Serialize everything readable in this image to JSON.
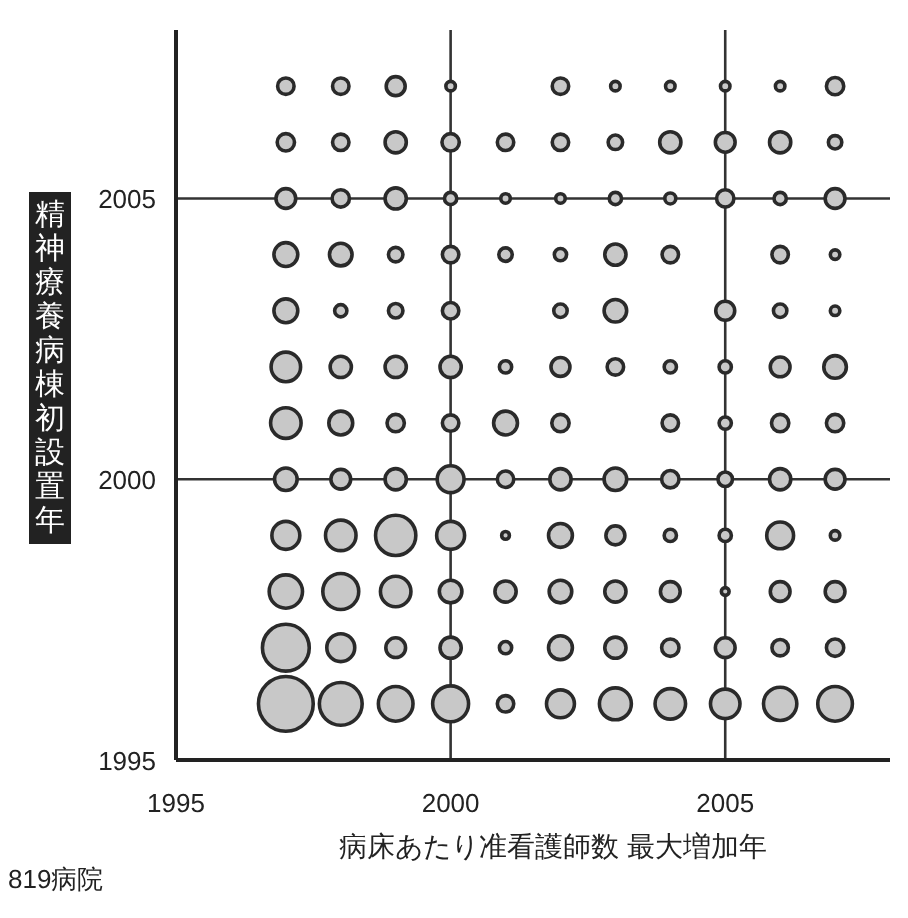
{
  "chart_data": {
    "type": "bubble",
    "xlabel": "病床あたり准看護師数 最大増加年",
    "ylabel": "精神療養病棟初設置年",
    "annotations": [
      "819病院"
    ],
    "xlim": [
      1995,
      2008
    ],
    "ylim": [
      1995,
      2008
    ],
    "xticks": [
      1995,
      2000,
      2005
    ],
    "yticks": [
      1995,
      2000,
      2005
    ],
    "grid": true,
    "series": [
      {
        "color": "#c8c8c8",
        "x": [
          1997,
          1998,
          1999,
          2000,
          2002,
          2003,
          2004,
          2005,
          2006,
          2007,
          1997,
          1998,
          1999,
          2000,
          2001,
          2002,
          2003,
          2004,
          2005,
          2006,
          2007,
          1997,
          1998,
          1999,
          2000,
          2001,
          2002,
          2003,
          2004,
          2005,
          2006,
          2007,
          1997,
          1998,
          1999,
          2000,
          2001,
          2002,
          2003,
          2004,
          2006,
          2007,
          1997,
          1998,
          1999,
          2000,
          2002,
          2003,
          2005,
          2006,
          2007,
          1997,
          1998,
          1999,
          2000,
          2001,
          2002,
          2003,
          2004,
          2005,
          2006,
          2007,
          1997,
          1998,
          1999,
          2000,
          2001,
          2002,
          2004,
          2005,
          2006,
          2007,
          1997,
          1998,
          1999,
          2000,
          2001,
          2002,
          2003,
          2004,
          2005,
          2006,
          2007,
          1997,
          1998,
          1999,
          2000,
          2001,
          2002,
          2003,
          2004,
          2005,
          2006,
          2007,
          1997,
          1998,
          1999,
          2000,
          2001,
          2002,
          2003,
          2004,
          2005,
          2006,
          2007,
          1997,
          1998,
          1999,
          2000,
          2001,
          2002,
          2003,
          2004,
          2005,
          2006,
          2007,
          1997,
          1998,
          1999,
          2000,
          2001,
          2002,
          2003,
          2004,
          2005,
          2006,
          2007
        ],
        "values": [
          2007,
          2007,
          2007,
          2007,
          2007,
          2007,
          2007,
          2007,
          2007,
          2007,
          2006,
          2006,
          2006,
          2006,
          2006,
          2006,
          2006,
          2006,
          2006,
          2006,
          2006,
          2005,
          2005,
          2005,
          2005,
          2005,
          2005,
          2005,
          2005,
          2005,
          2005,
          2005,
          2004,
          2004,
          2004,
          2004,
          2004,
          2004,
          2004,
          2004,
          2004,
          2004,
          2003,
          2003,
          2003,
          2003,
          2003,
          2003,
          2003,
          2003,
          2003,
          2002,
          2002,
          2002,
          2002,
          2002,
          2002,
          2002,
          2002,
          2002,
          2002,
          2002,
          2001,
          2001,
          2001,
          2001,
          2001,
          2001,
          2001,
          2001,
          2001,
          2001,
          2000,
          2000,
          2000,
          2000,
          2000,
          2000,
          2000,
          2000,
          2000,
          2000,
          2000,
          1999,
          1999,
          1999,
          1999,
          1999,
          1999,
          1999,
          1999,
          1999,
          1999,
          1999,
          1998,
          1998,
          1998,
          1998,
          1998,
          1998,
          1998,
          1998,
          1998,
          1998,
          1998,
          1997,
          1997,
          1997,
          1997,
          1997,
          1997,
          1997,
          1997,
          1997,
          1997,
          1997,
          1996,
          1996,
          1996,
          1996,
          1996,
          1996,
          1996,
          1996,
          1996,
          1996,
          1996
        ],
        "sizes": [
          0.09,
          0.09,
          0.12,
          0.03,
          0.09,
          0.03,
          0.03,
          0.03,
          0.03,
          0.1,
          0.1,
          0.09,
          0.15,
          0.1,
          0.09,
          0.09,
          0.07,
          0.15,
          0.13,
          0.15,
          0.06,
          0.13,
          0.1,
          0.15,
          0.05,
          0.03,
          0.03,
          0.05,
          0.04,
          0.1,
          0.05,
          0.13,
          0.19,
          0.17,
          0.07,
          0.09,
          0.06,
          0.05,
          0.15,
          0.09,
          0.09,
          0.03,
          0.19,
          0.05,
          0.07,
          0.09,
          0.06,
          0.17,
          0.12,
          0.06,
          0.03,
          0.29,
          0.15,
          0.15,
          0.15,
          0.05,
          0.12,
          0.09,
          0.05,
          0.05,
          0.13,
          0.17,
          0.31,
          0.19,
          0.1,
          0.09,
          0.19,
          0.1,
          0.09,
          0.05,
          0.1,
          0.1,
          0.17,
          0.13,
          0.15,
          0.24,
          0.09,
          0.15,
          0.17,
          0.1,
          0.07,
          0.15,
          0.13,
          0.26,
          0.31,
          0.54,
          0.26,
          0.02,
          0.19,
          0.12,
          0.05,
          0.05,
          0.24,
          0.03,
          0.37,
          0.43,
          0.31,
          0.17,
          0.15,
          0.17,
          0.15,
          0.13,
          0.02,
          0.13,
          0.13,
          0.73,
          0.26,
          0.13,
          0.15,
          0.05,
          0.19,
          0.15,
          0.1,
          0.13,
          0.09,
          0.1,
          1,
          0.61,
          0.4,
          0.43,
          0.09,
          0.26,
          0.34,
          0.31,
          0.29,
          0.37,
          0.4
        ]
      }
    ]
  }
}
